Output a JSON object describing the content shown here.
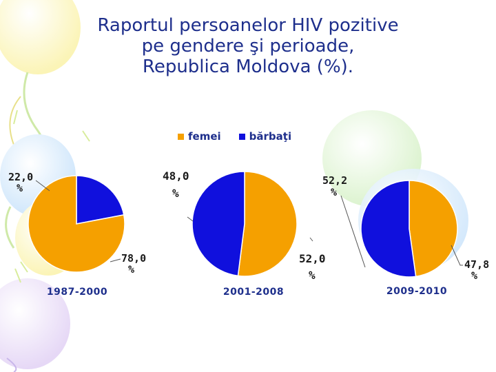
{
  "title": {
    "line1": "Raportul persoanelor HIV pozitive",
    "line2": "pe gendere şi perioade,",
    "line3": "Republica Moldova (%)."
  },
  "legend": {
    "femei": "femei",
    "barbati": "bărbaţi"
  },
  "colors": {
    "femei": "#F5A000",
    "barbati": "#1010DD",
    "title": "#1E2F8C"
  },
  "chart_data": {
    "type": "pie",
    "series_names": [
      "femei",
      "bărbaţi"
    ],
    "charts": [
      {
        "period": "1987-2000",
        "slices": [
          {
            "name": "femei",
            "value": 78.0,
            "label_value": "78,0",
            "label_unit": "%"
          },
          {
            "name": "bărbaţi",
            "value": 22.0,
            "label_value": "22,0",
            "label_unit": "%"
          }
        ]
      },
      {
        "period": "2001-2008",
        "slices": [
          {
            "name": "femei",
            "value": 52.0,
            "label_value": "52,0",
            "label_unit": "%"
          },
          {
            "name": "bărbaţi",
            "value": 48.0,
            "label_value": "48,0",
            "label_unit": "%"
          }
        ]
      },
      {
        "period": "2009-2010",
        "slices": [
          {
            "name": "femei",
            "value": 47.8,
            "label_value": "47,8",
            "label_unit": "%"
          },
          {
            "name": "bărbaţi",
            "value": 52.2,
            "label_value": "52,2",
            "label_unit": "%"
          }
        ]
      }
    ]
  }
}
